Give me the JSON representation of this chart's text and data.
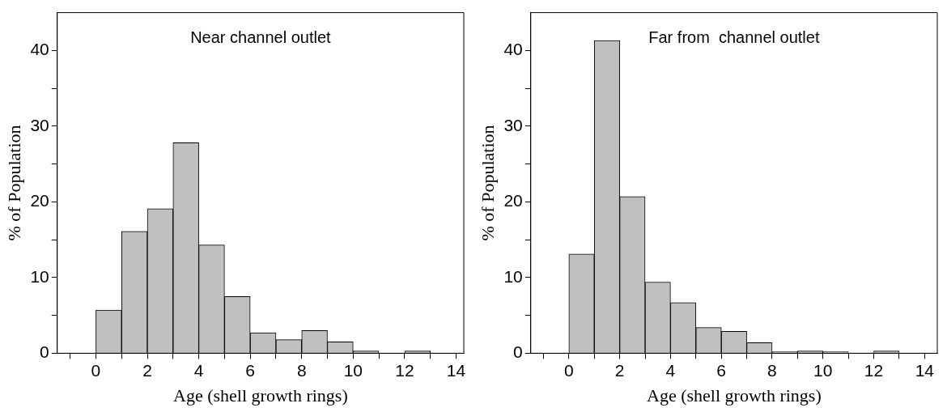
{
  "chart_data": [
    {
      "type": "histogram",
      "title": "Near channel outlet",
      "xlabel": "Age (shell growth rings)",
      "ylabel": "% of Population",
      "color": "#c0c0c0",
      "bins": [
        -1,
        0,
        1,
        2,
        3,
        4,
        5,
        6,
        7,
        8,
        9,
        10,
        11,
        12,
        13,
        14
      ],
      "values": [
        0,
        5.7,
        16.1,
        19.1,
        27.8,
        14.3,
        7.5,
        2.7,
        1.8,
        3.0,
        1.5,
        0.3,
        0,
        0.3,
        0
      ],
      "xlim": [
        -1.5,
        14.3
      ],
      "ylim": [
        0,
        45
      ],
      "xticks": [
        {
          "value": -1,
          "label": null
        },
        0,
        {
          "value": 1,
          "label": null
        },
        2,
        {
          "value": 3,
          "label": null
        },
        4,
        {
          "value": 5,
          "label": null
        },
        6,
        {
          "value": 7,
          "label": null
        },
        8,
        {
          "value": 9,
          "label": null
        },
        10,
        {
          "value": 11,
          "label": null
        },
        12,
        {
          "value": 13,
          "label": null
        },
        14
      ],
      "yticks": [
        0,
        {
          "value": 5,
          "label": null
        },
        10,
        {
          "value": 15,
          "label": null
        },
        20,
        {
          "value": 25,
          "label": null
        },
        30,
        {
          "value": 35,
          "label": null
        },
        40
      ]
    },
    {
      "type": "histogram",
      "title": "Far from  channel outlet",
      "xlabel": "Age (shell growth rings)",
      "ylabel": "% of Population",
      "color": "#c0c0c0",
      "bins": [
        -1,
        0,
        1,
        2,
        3,
        4,
        5,
        6,
        7,
        8,
        9,
        10,
        11,
        12,
        13,
        14
      ],
      "values": [
        0,
        13.1,
        41.3,
        20.7,
        9.4,
        6.7,
        3.4,
        2.9,
        1.4,
        0.2,
        0.3,
        0.2,
        0,
        0.3,
        0
      ],
      "xlim": [
        -1.5,
        14.5
      ],
      "ylim": [
        0,
        45
      ],
      "xticks": [
        {
          "value": -1,
          "label": null
        },
        0,
        {
          "value": 1,
          "label": null
        },
        2,
        {
          "value": 3,
          "label": null
        },
        4,
        {
          "value": 5,
          "label": null
        },
        6,
        {
          "value": 7,
          "label": null
        },
        8,
        {
          "value": 9,
          "label": null
        },
        10,
        {
          "value": 11,
          "label": null
        },
        12,
        {
          "value": 13,
          "label": null
        },
        14
      ],
      "yticks": [
        0,
        {
          "value": 5,
          "label": null
        },
        10,
        {
          "value": 15,
          "label": null
        },
        20,
        {
          "value": 25,
          "label": null
        },
        30,
        {
          "value": 35,
          "label": null
        },
        40
      ]
    }
  ]
}
